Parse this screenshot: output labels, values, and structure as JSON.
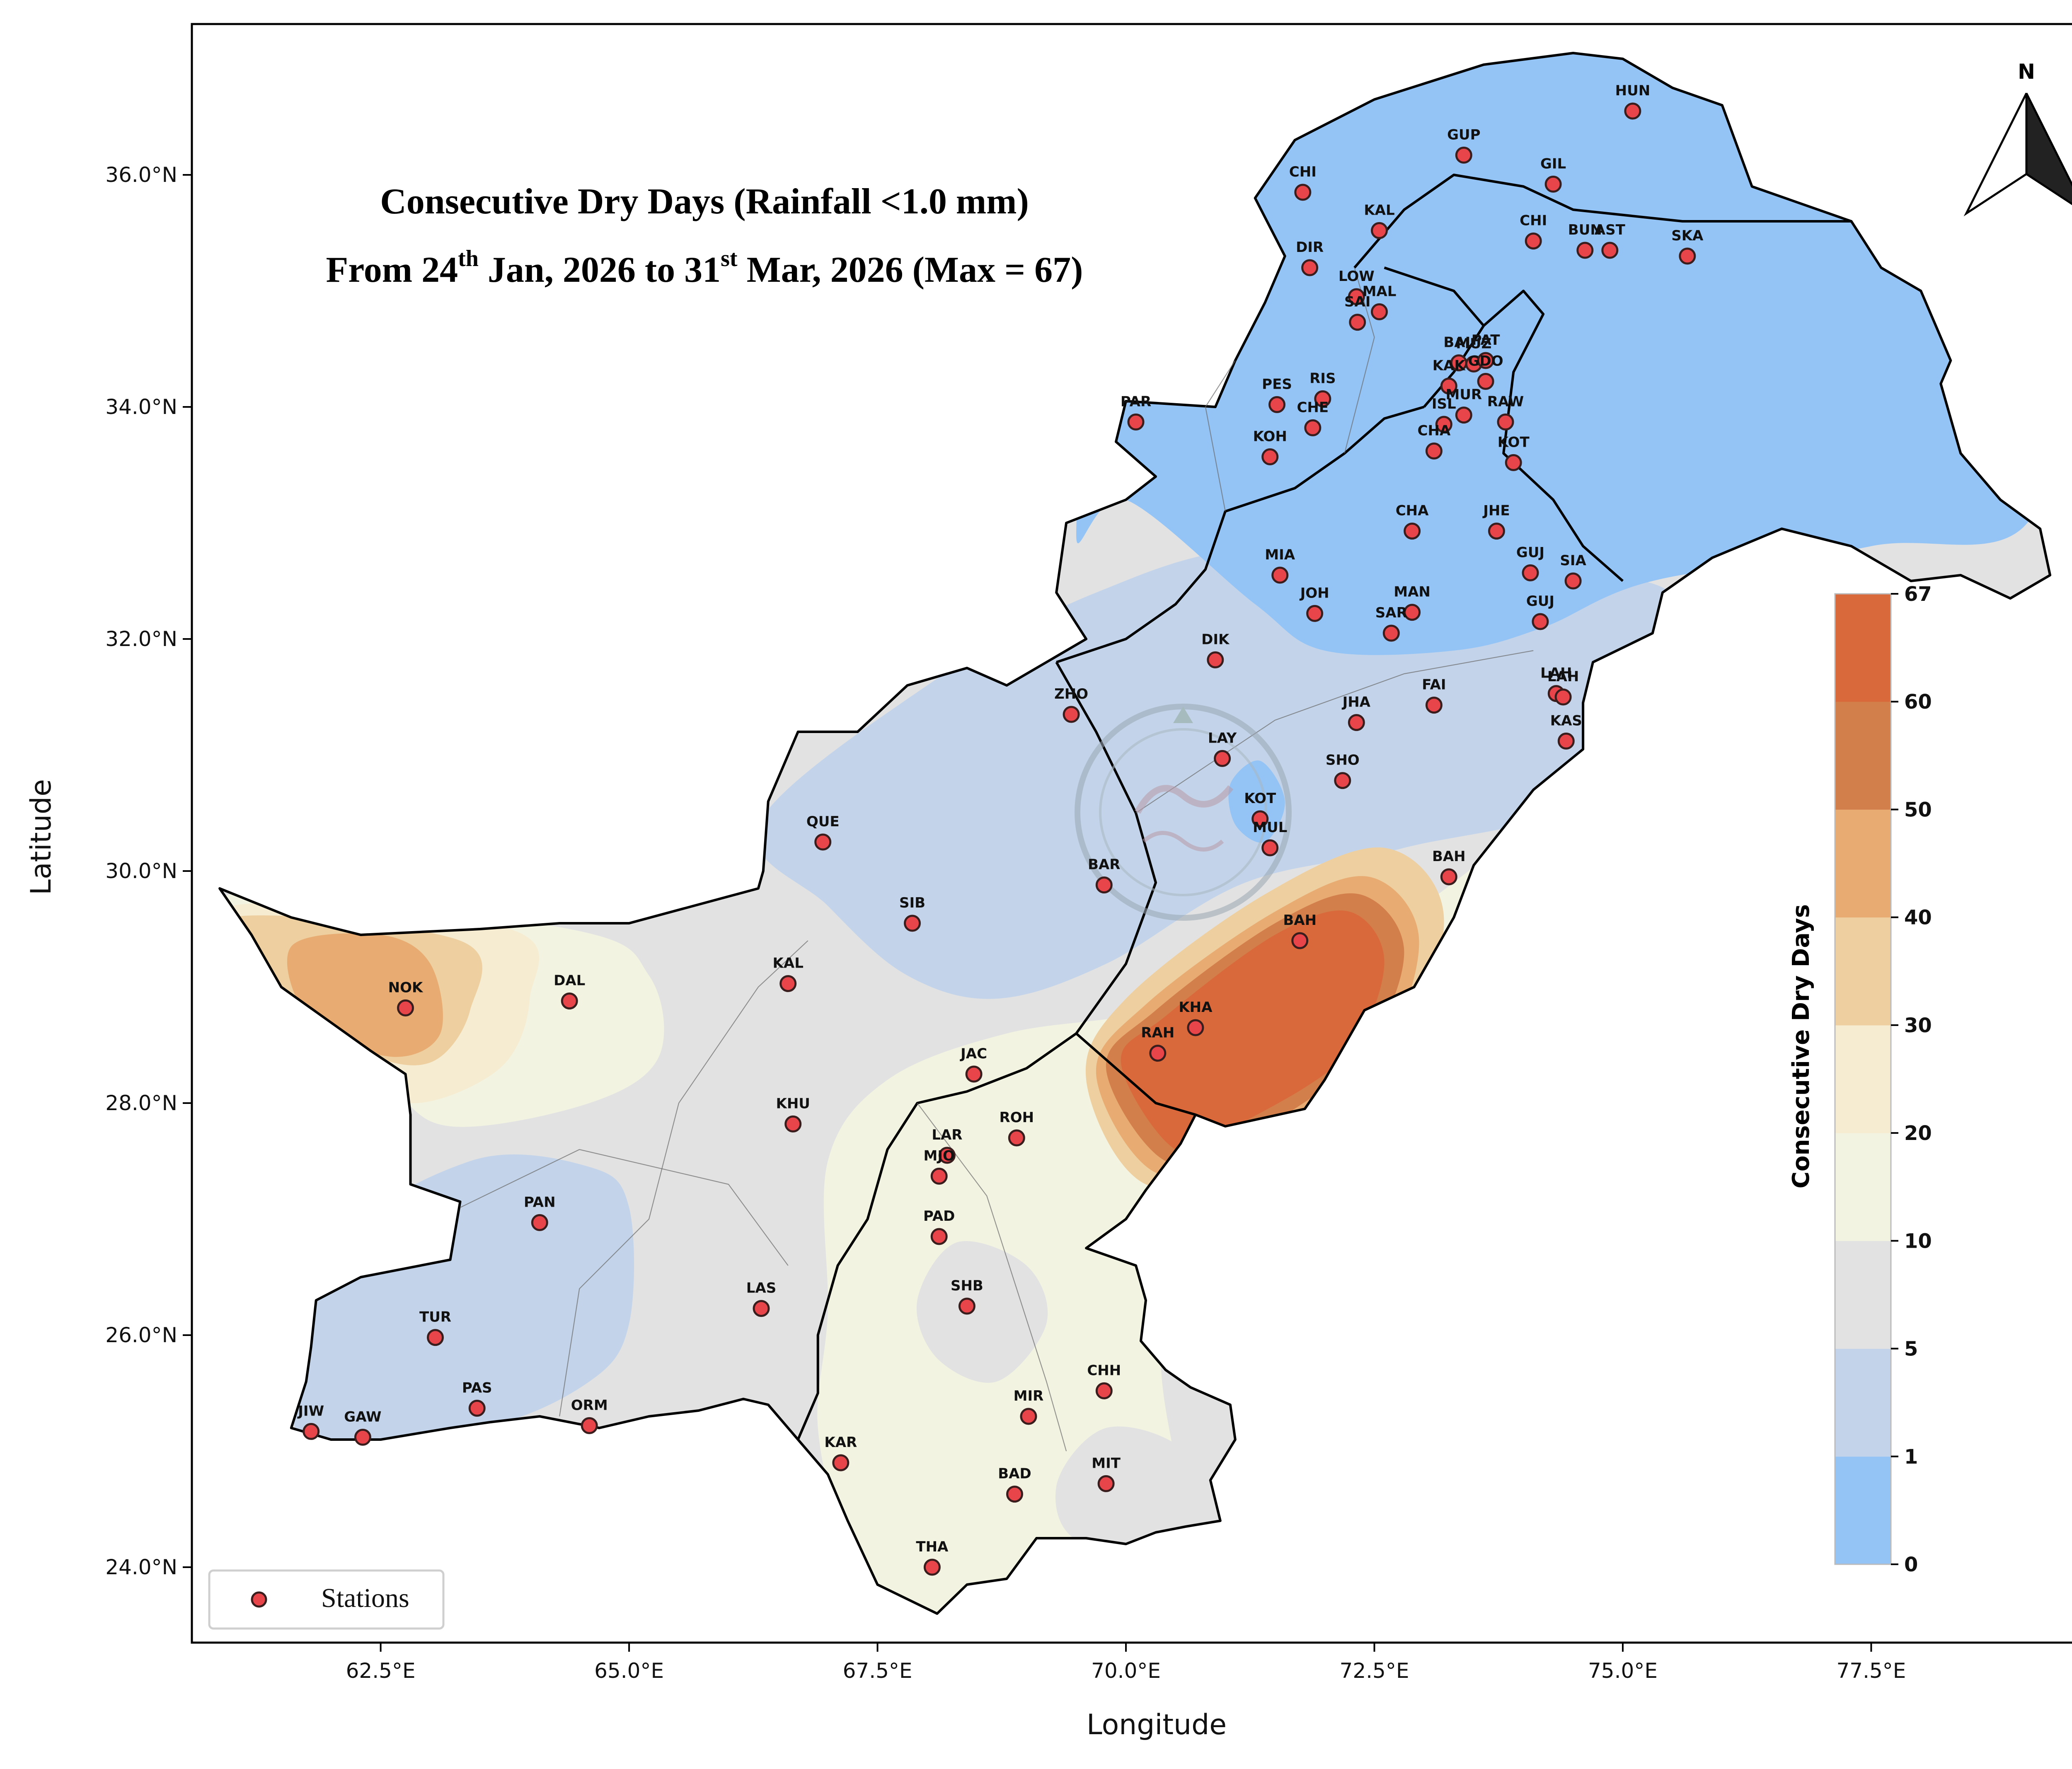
{
  "map": {
    "title_line1": "Consecutive Dry Days (Rainfall <1.0 mm)",
    "title_line2_parts": [
      "From 24",
      "th",
      " Jan, 2026 to 31",
      "st",
      " Mar, 2026 (Max = 67)"
    ],
    "x_axis_label": "Longitude",
    "y_axis_label": "Latitude",
    "x_ticks": [
      "62.5°E",
      "65.0°E",
      "67.5°E",
      "70.0°E",
      "72.5°E",
      "75.0°E",
      "77.5°E"
    ],
    "x_tick_values": [
      62.5,
      65.0,
      67.5,
      70.0,
      72.5,
      75.0,
      77.5
    ],
    "y_ticks": [
      "24.0°N",
      "26.0°N",
      "28.0°N",
      "30.0°N",
      "32.0°N",
      "34.0°N",
      "36.0°N"
    ],
    "y_tick_values": [
      24.0,
      26.0,
      28.0,
      30.0,
      32.0,
      34.0,
      36.0
    ],
    "x_range": [
      60.6,
      79.6
    ],
    "y_range": [
      23.35,
      37.3
    ],
    "north_arrow_label": "N",
    "legend": {
      "marker_label": "Stations",
      "marker_color": "#e8454b"
    },
    "colorbar": {
      "label": "Consecutive Dry Days",
      "boundaries": [
        "0",
        "1",
        "5",
        "10",
        "20",
        "30",
        "40",
        "50",
        "60",
        "67"
      ],
      "colors": [
        "#93c4f5",
        "#c3d4ea",
        "#e2e2e2",
        "#f3f3e2",
        "#f5ecd1",
        "#eecfa0",
        "#e8ab72",
        "#d27f4c",
        "#d9693a"
      ]
    }
  },
  "chart_data": {
    "type": "scatter",
    "variable": "Consecutive Dry Days",
    "xlabel": "Longitude",
    "ylabel": "Latitude",
    "xlim": [
      60.6,
      79.6
    ],
    "ylim": [
      23.35,
      37.3
    ],
    "max_value": 67,
    "grid": false,
    "legend": "bottom-left",
    "stations": [
      {
        "code": "GUP",
        "lon": 73.4,
        "lat": 36.17
      },
      {
        "code": "HUN",
        "lon": 75.1,
        "lat": 36.55
      },
      {
        "code": "GIL",
        "lon": 74.3,
        "lat": 35.92
      },
      {
        "code": "CHI",
        "lon": 71.78,
        "lat": 35.85
      },
      {
        "code": "KAL",
        "lon": 72.55,
        "lat": 35.52
      },
      {
        "code": "CHI",
        "lon": 74.1,
        "lat": 35.43
      },
      {
        "code": "BUN",
        "lon": 74.62,
        "lat": 35.35
      },
      {
        "code": "AST",
        "lon": 74.87,
        "lat": 35.35
      },
      {
        "code": "SKA",
        "lon": 75.65,
        "lat": 35.3
      },
      {
        "code": "DIR",
        "lon": 71.85,
        "lat": 35.2
      },
      {
        "code": "LOW",
        "lon": 72.32,
        "lat": 34.95
      },
      {
        "code": "MAL",
        "lon": 72.55,
        "lat": 34.82
      },
      {
        "code": "SAI",
        "lon": 72.33,
        "lat": 34.73
      },
      {
        "code": "BAL",
        "lon": 73.35,
        "lat": 34.38
      },
      {
        "code": "MUZ",
        "lon": 73.5,
        "lat": 34.37
      },
      {
        "code": "PAT",
        "lon": 73.62,
        "lat": 34.4
      },
      {
        "code": "KAK",
        "lon": 73.25,
        "lat": 34.18
      },
      {
        "code": "GDO",
        "lon": 73.62,
        "lat": 34.22
      },
      {
        "code": "PES",
        "lon": 71.52,
        "lat": 34.02
      },
      {
        "code": "RIS",
        "lon": 71.98,
        "lat": 34.07
      },
      {
        "code": "MUR",
        "lon": 73.4,
        "lat": 33.93
      },
      {
        "code": "ISL",
        "lon": 73.2,
        "lat": 33.85
      },
      {
        "code": "RAW",
        "lon": 73.82,
        "lat": 33.87
      },
      {
        "code": "CHE",
        "lon": 71.88,
        "lat": 33.82
      },
      {
        "code": "PAR",
        "lon": 70.1,
        "lat": 33.87
      },
      {
        "code": "KOH",
        "lon": 71.45,
        "lat": 33.57
      },
      {
        "code": "CHA",
        "lon": 73.1,
        "lat": 33.62
      },
      {
        "code": "KOT",
        "lon": 73.9,
        "lat": 33.52
      },
      {
        "code": "CHA",
        "lon": 72.88,
        "lat": 32.93
      },
      {
        "code": "JHE",
        "lon": 73.73,
        "lat": 32.93
      },
      {
        "code": "MIA",
        "lon": 71.55,
        "lat": 32.55
      },
      {
        "code": "GUJ",
        "lon": 74.07,
        "lat": 32.57
      },
      {
        "code": "SIA",
        "lon": 74.5,
        "lat": 32.5
      },
      {
        "code": "JOH",
        "lon": 71.9,
        "lat": 32.22
      },
      {
        "code": "MAN",
        "lon": 72.88,
        "lat": 32.23
      },
      {
        "code": "SAR",
        "lon": 72.67,
        "lat": 32.05
      },
      {
        "code": "GUJ",
        "lon": 74.17,
        "lat": 32.15
      },
      {
        "code": "DIK",
        "lon": 70.9,
        "lat": 31.82
      },
      {
        "code": "ZHO",
        "lon": 69.45,
        "lat": 31.35
      },
      {
        "code": "FAI",
        "lon": 73.1,
        "lat": 31.43
      },
      {
        "code": "LAH",
        "lon": 74.33,
        "lat": 31.53
      },
      {
        "code": "LAH",
        "lon": 74.4,
        "lat": 31.5
      },
      {
        "code": "JHA",
        "lon": 72.32,
        "lat": 31.28
      },
      {
        "code": "KAS",
        "lon": 74.43,
        "lat": 31.12
      },
      {
        "code": "LAY",
        "lon": 70.97,
        "lat": 30.97
      },
      {
        "code": "SHO",
        "lon": 72.18,
        "lat": 30.78
      },
      {
        "code": "KOT",
        "lon": 71.35,
        "lat": 30.45
      },
      {
        "code": "MUL",
        "lon": 71.45,
        "lat": 30.2
      },
      {
        "code": "QUE",
        "lon": 66.95,
        "lat": 30.25
      },
      {
        "code": "BAR",
        "lon": 69.78,
        "lat": 29.88
      },
      {
        "code": "BAH",
        "lon": 73.25,
        "lat": 29.95
      },
      {
        "code": "SIB",
        "lon": 67.85,
        "lat": 29.55
      },
      {
        "code": "BAH",
        "lon": 71.75,
        "lat": 29.4
      },
      {
        "code": "KAL",
        "lon": 66.6,
        "lat": 29.03
      },
      {
        "code": "NOK",
        "lon": 62.75,
        "lat": 28.82
      },
      {
        "code": "DAL",
        "lon": 64.4,
        "lat": 28.88
      },
      {
        "code": "KHA",
        "lon": 70.7,
        "lat": 28.65
      },
      {
        "code": "RAH",
        "lon": 70.32,
        "lat": 28.43
      },
      {
        "code": "JAC",
        "lon": 68.47,
        "lat": 28.25
      },
      {
        "code": "KHU",
        "lon": 66.65,
        "lat": 27.82
      },
      {
        "code": "ROH",
        "lon": 68.9,
        "lat": 27.7
      },
      {
        "code": "LAR",
        "lon": 68.2,
        "lat": 27.55
      },
      {
        "code": "MJO",
        "lon": 68.12,
        "lat": 27.37
      },
      {
        "code": "PAN",
        "lon": 64.1,
        "lat": 26.97
      },
      {
        "code": "PAD",
        "lon": 68.12,
        "lat": 26.85
      },
      {
        "code": "LAS",
        "lon": 66.33,
        "lat": 26.23
      },
      {
        "code": "SHB",
        "lon": 68.4,
        "lat": 26.25
      },
      {
        "code": "TUR",
        "lon": 63.05,
        "lat": 25.98
      },
      {
        "code": "CHH",
        "lon": 69.78,
        "lat": 25.52
      },
      {
        "code": "PAS",
        "lon": 63.47,
        "lat": 25.37
      },
      {
        "code": "MIR",
        "lon": 69.02,
        "lat": 25.3
      },
      {
        "code": "ORM",
        "lon": 64.6,
        "lat": 25.22
      },
      {
        "code": "JIW",
        "lon": 61.8,
        "lat": 25.17
      },
      {
        "code": "GAW",
        "lon": 62.32,
        "lat": 25.12
      },
      {
        "code": "KAR",
        "lon": 67.13,
        "lat": 24.9
      },
      {
        "code": "MIT",
        "lon": 69.8,
        "lat": 24.72
      },
      {
        "code": "BAD",
        "lon": 68.88,
        "lat": 24.63
      },
      {
        "code": "THA",
        "lon": 68.05,
        "lat": 24.0
      }
    ]
  }
}
